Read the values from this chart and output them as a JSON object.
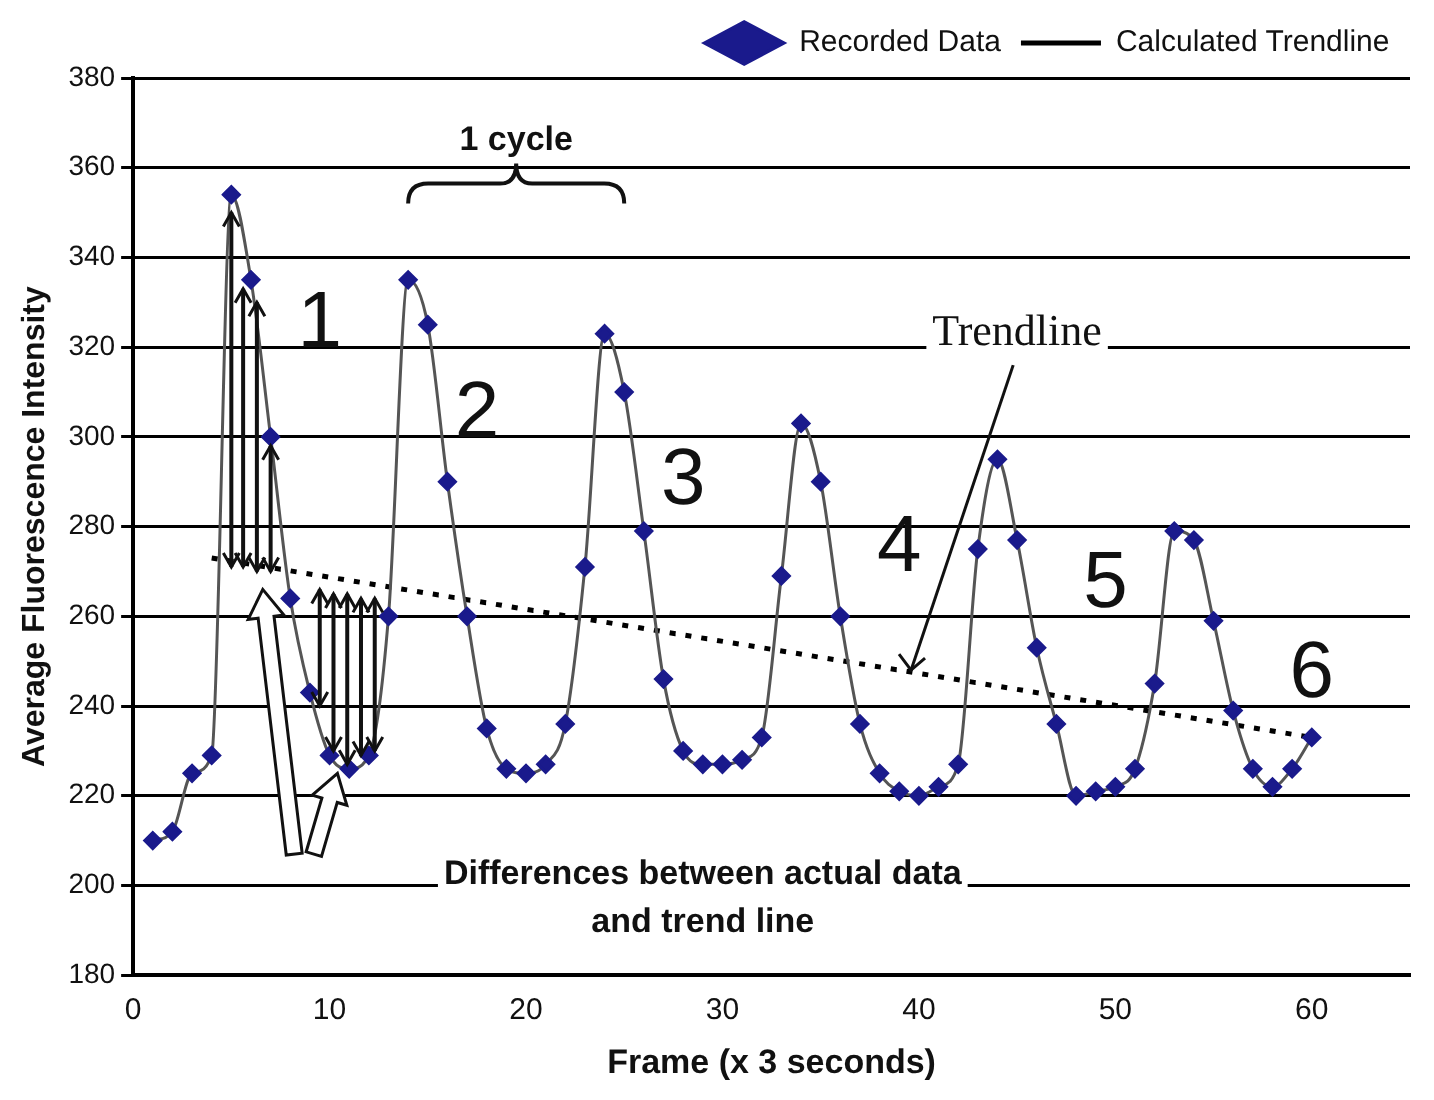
{
  "chart_data": {
    "type": "line",
    "xlabel": "Frame (x 3 seconds)",
    "ylabel": "Average Fluorescence Intensity",
    "xlim": [
      0,
      65
    ],
    "xticks": [
      0,
      10,
      20,
      30,
      40,
      50,
      60
    ],
    "ylim": [
      180,
      380
    ],
    "yticks": [
      180,
      200,
      220,
      240,
      260,
      280,
      300,
      320,
      340,
      360,
      380
    ],
    "grid": "y",
    "legend": "top right",
    "series": [
      {
        "name": "Recorded Data",
        "color": "#1a1a8c",
        "marker": "diamond",
        "line_style": "solid",
        "x": [
          1,
          2,
          3,
          4,
          5,
          6,
          7,
          8,
          9,
          10,
          11,
          12,
          13,
          14,
          15,
          16,
          17,
          18,
          19,
          20,
          21,
          22,
          23,
          24,
          25,
          26,
          27,
          28,
          29,
          30,
          31,
          32,
          33,
          34,
          35,
          36,
          37,
          38,
          39,
          40,
          41,
          42,
          43,
          44,
          45,
          46,
          47,
          48,
          49,
          50,
          51,
          52,
          53,
          54,
          55,
          56,
          57,
          58,
          59,
          60
        ],
        "values": [
          210,
          212,
          225,
          229,
          354,
          335,
          300,
          264,
          243,
          229,
          226,
          229,
          260,
          335,
          325,
          290,
          260,
          235,
          226,
          225,
          227,
          236,
          271,
          323,
          310,
          279,
          246,
          230,
          227,
          227,
          228,
          233,
          269,
          303,
          290,
          260,
          236,
          225,
          221,
          220,
          222,
          227,
          275,
          295,
          277,
          253,
          236,
          220,
          221,
          222,
          226,
          245,
          279,
          277,
          259,
          239,
          226,
          222,
          226,
          233
        ]
      },
      {
        "name": "Calculated Trendline",
        "color": "#000000",
        "marker": "none",
        "line_style": "dotted",
        "x": [
          4,
          60
        ],
        "values": [
          273,
          233
        ]
      }
    ],
    "annotations": [
      "1 cycle",
      {
        "text": "1",
        "x": 9.5,
        "y": 325
      },
      {
        "text": "2",
        "x": 17.5,
        "y": 305
      },
      {
        "text": "3",
        "x": 28,
        "y": 290
      },
      {
        "text": "4",
        "x": 39,
        "y": 275
      },
      {
        "text": "5",
        "x": 49.5,
        "y": 267
      },
      {
        "text": "6",
        "x": 60,
        "y": 247
      },
      {
        "text": "Trendline",
        "x": 39.6,
        "y": 248
      },
      "Differences between actual data and trend line"
    ]
  }
}
